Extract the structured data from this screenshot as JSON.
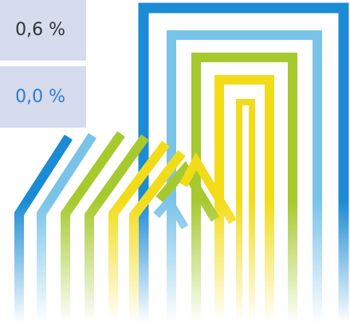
{
  "cells": {
    "top_value": "0,6 %",
    "bottom_value": "0,0 %"
  },
  "logo": {
    "icon": "abstract-house-stripes-logo",
    "colors": {
      "blue": "#1a8bd4",
      "light_blue": "#7ac3e8",
      "green": "#a6c92e",
      "yellow": "#f2dc1a"
    }
  },
  "colors": {
    "cell_background": "#d6dbee",
    "bottom_value_text": "#2a7fd1"
  }
}
